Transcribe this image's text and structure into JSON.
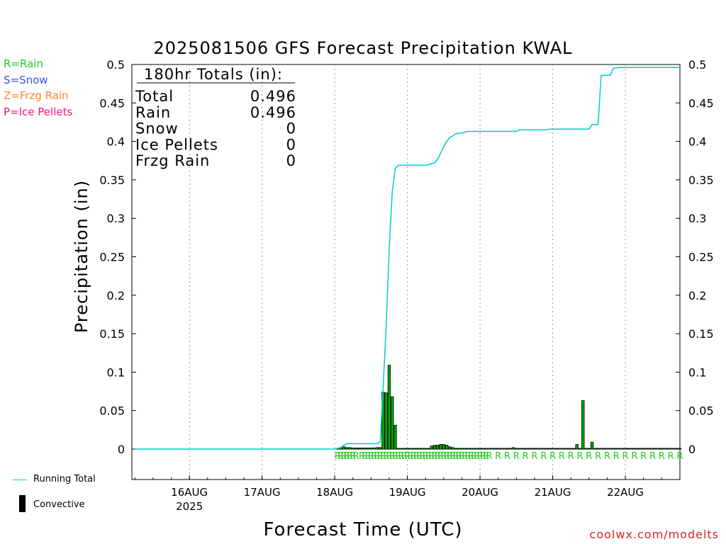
{
  "chart_data": {
    "type": "bar",
    "title": "2025081506 GFS Forecast Precipitation KWAL",
    "xlabel": "Forecast Time (UTC)",
    "ylabel": "Precipitation (in)",
    "ylim": [
      -0.04,
      0.5
    ],
    "yticks": [
      0,
      0.05,
      0.1,
      0.15,
      0.2,
      0.25,
      0.3,
      0.35,
      0.4,
      0.45,
      0.5
    ],
    "ytick_labels": [
      "0",
      "0.05",
      "0.1",
      "0.15",
      "0.2",
      "0.25",
      "0.3",
      "0.35",
      "0.4",
      "0.45",
      "0.5"
    ],
    "x_hours_range": [
      0,
      180
    ],
    "xticks": [
      {
        "hour": 18,
        "label": "16AUG",
        "sublabel": "2025"
      },
      {
        "hour": 42,
        "label": "17AUG",
        "sublabel": ""
      },
      {
        "hour": 66,
        "label": "18AUG",
        "sublabel": ""
      },
      {
        "hour": 90,
        "label": "19AUG",
        "sublabel": ""
      },
      {
        "hour": 114,
        "label": "20AUG",
        "sublabel": ""
      },
      {
        "hour": 138,
        "label": "21AUG",
        "sublabel": ""
      },
      {
        "hour": 162,
        "label": "22AUG",
        "sublabel": ""
      }
    ],
    "grid": true,
    "totals_box": {
      "header": "180hr Totals (in):",
      "rows": [
        {
          "label": "Total",
          "value": "0.496"
        },
        {
          "label": "Rain",
          "value": "0.496"
        },
        {
          "label": "Snow",
          "value": "0"
        },
        {
          "label": "Ice Pellets",
          "value": "0"
        },
        {
          "label": "Frzg Rain",
          "value": "0"
        }
      ]
    },
    "series": [
      {
        "name": "Convective",
        "kind": "bars",
        "hours": [
          68,
          69,
          70,
          71,
          72,
          73,
          74,
          75,
          76,
          77,
          78,
          79,
          80,
          81,
          82,
          83,
          84,
          85,
          86,
          87,
          88,
          89,
          90,
          91,
          92,
          93,
          94,
          95,
          96,
          97,
          98,
          99,
          100,
          101,
          102,
          103,
          104,
          105,
          106,
          107,
          108,
          109,
          110,
          111,
          112,
          113,
          114,
          115,
          116,
          117,
          118,
          119,
          120,
          121,
          122,
          123,
          124,
          125,
          126,
          127,
          128,
          129,
          130,
          131,
          132,
          133,
          134,
          135,
          136,
          137,
          138,
          139,
          140,
          141,
          142,
          143,
          144,
          145,
          146,
          147,
          148,
          149,
          150,
          151,
          152,
          153,
          154,
          155,
          156,
          157,
          158,
          159,
          160,
          161,
          162,
          163,
          164,
          165,
          166,
          167,
          168,
          169,
          170,
          171,
          172,
          173,
          174,
          175,
          176,
          177,
          178,
          179,
          180
        ],
        "total": [
          0.002,
          0.003,
          0.002,
          0.002,
          0.0015,
          0.0015,
          0.0015,
          0.0015,
          0.0015,
          0.0015,
          0.0015,
          0.0015,
          0.002,
          0.002,
          0.074,
          0.073,
          0.109,
          0.068,
          0.031,
          0.001,
          0.001,
          0.001,
          0.001,
          0.001,
          0.001,
          0.001,
          0.001,
          0.001,
          0.001,
          0.001,
          0.004,
          0.005,
          0.005,
          0.006,
          0.006,
          0.005,
          0.003,
          0.002,
          0.001,
          0.001,
          0.001,
          0.001,
          0.001,
          0.001,
          0.001,
          0.001,
          0.001,
          0.001,
          0.001,
          0.001,
          0.001,
          0.001,
          0.001,
          0.001,
          0.001,
          0.001,
          0.001,
          0.002,
          0.001,
          0.001,
          0.001,
          0.001,
          0.001,
          0.001,
          0.001,
          0.001,
          0.001,
          0.001,
          0.001,
          0.001,
          0.001,
          0.001,
          0.001,
          0.001,
          0.001,
          0.001,
          0.001,
          0.001,
          0.006,
          0.001,
          0.063,
          0.001,
          0.001,
          0.009,
          0.001,
          0.001,
          0.001,
          0.001,
          0.001,
          0.001,
          0.001,
          0.001,
          0.001,
          0.001,
          0.001,
          0.001,
          0.001,
          0.001,
          0.001,
          0.001,
          0.001,
          0.001,
          0.001,
          0.001,
          0.001,
          0.001,
          0.001,
          0.001,
          0.001,
          0.001,
          0.001,
          0.001,
          0.001
        ]
      },
      {
        "name": "Running Total",
        "kind": "line",
        "hours": [
          0,
          66,
          68,
          69,
          70,
          71,
          72,
          80,
          81,
          82,
          83,
          84,
          85,
          86,
          87,
          88,
          90,
          96,
          97,
          98,
          99,
          100,
          101,
          102,
          103,
          104,
          105,
          106,
          108,
          110,
          120,
          126,
          127,
          136,
          137,
          144,
          150,
          151,
          153,
          154,
          157,
          158,
          160,
          170,
          180
        ],
        "values": [
          0,
          0,
          0.002,
          0.005,
          0.007,
          0.007,
          0.007,
          0.007,
          0.009,
          0.08,
          0.16,
          0.26,
          0.335,
          0.365,
          0.369,
          0.369,
          0.369,
          0.369,
          0.37,
          0.371,
          0.372,
          0.377,
          0.385,
          0.393,
          0.4,
          0.405,
          0.407,
          0.41,
          0.411,
          0.413,
          0.413,
          0.413,
          0.415,
          0.415,
          0.416,
          0.416,
          0.416,
          0.422,
          0.422,
          0.486,
          0.486,
          0.495,
          0.496,
          0.496,
          0.496
        ]
      }
    ],
    "precip_type_markers": {
      "symbol": "R",
      "color": "#22cc22",
      "hours": [
        67,
        68,
        69,
        70,
        71,
        72,
        73,
        75,
        76,
        77,
        78,
        79,
        80,
        81,
        82,
        83,
        84,
        85,
        86,
        87,
        88,
        89,
        90,
        91,
        92,
        93,
        94,
        95,
        96,
        97,
        98,
        99,
        100,
        101,
        102,
        103,
        104,
        105,
        106,
        107,
        108,
        109,
        110,
        111,
        112,
        113,
        114,
        115,
        116,
        117,
        120,
        123,
        126,
        129,
        132,
        135,
        138,
        141,
        144,
        147,
        150,
        153,
        156,
        159,
        162,
        165,
        168,
        171,
        174,
        177,
        180
      ]
    }
  },
  "legend": {
    "rain": "R=Rain",
    "snow": "S=Snow",
    "frzg": "Z=Frzg Rain",
    "ice": "P=Ice Pellets",
    "running_total": "Running Total",
    "convective": "Convective"
  },
  "colors": {
    "running_total": "#00cccc",
    "bar_fill": "#00aa00",
    "bar_edge": "#000000",
    "rain_marker": "#22cc22",
    "grid": "#999999",
    "credit": "#dd2222"
  },
  "credit": "coolwx.com/modelts"
}
